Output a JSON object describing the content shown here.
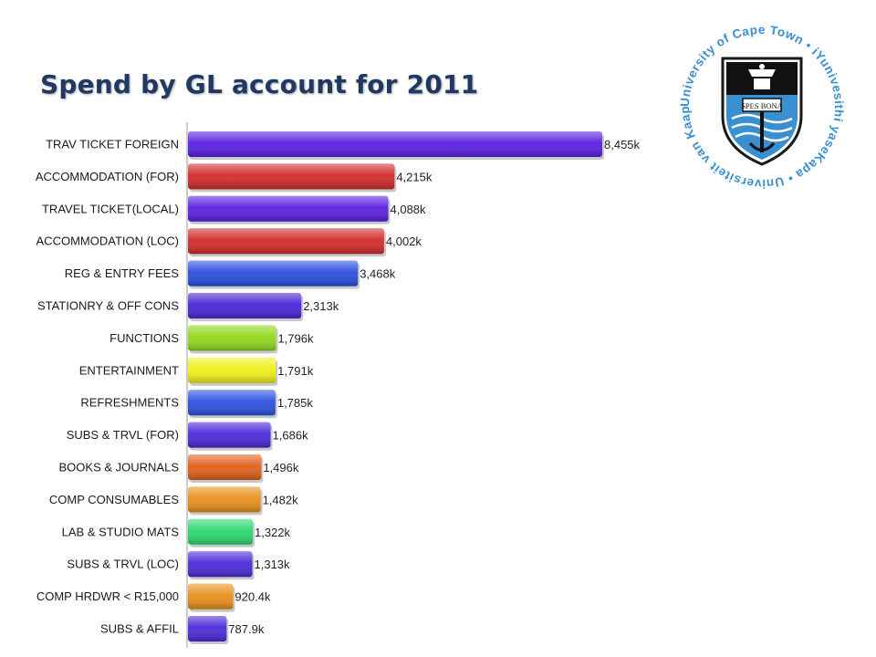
{
  "page": {
    "title": "Spend by GL account for 2011"
  },
  "logo": {
    "ring_text": "University of Cape Town • iYunivesithi yaseKapa • Universiteit van Kaapstad •",
    "motto": "SPES BONA",
    "color": "#3a8fd0"
  },
  "chart_data": {
    "type": "bar",
    "orientation": "horizontal",
    "title": "Spend by GL account for 2011",
    "xlabel": "",
    "ylabel": "",
    "xlim": [
      0,
      8455
    ],
    "categories": [
      "TRAV TICKET FOREIGN",
      "ACCOMMODATION (FOR)",
      "TRAVEL TICKET(LOCAL)",
      "ACCOMMODATION  (LOC)",
      "REG & ENTRY FEES",
      "STATIONRY & OFF CONS",
      "FUNCTIONS",
      "ENTERTAINMENT",
      "REFRESHMENTS",
      "SUBS & TRVL (FOR)",
      "BOOKS & JOURNALS",
      "COMP CONSUMABLES",
      "LAB & STUDIO MATS",
      "SUBS & TRVL (LOC)",
      "COMP HRDWR < R15,000",
      "SUBS & AFFIL"
    ],
    "values": [
      8455,
      4215,
      4088,
      4002,
      3468,
      2313,
      1796,
      1791,
      1785,
      1686,
      1496,
      1482,
      1322,
      1313,
      920.4,
      787.9
    ],
    "value_labels": [
      "8,455k",
      "4,215k",
      "4,088k",
      "4,002k",
      "3,468k",
      "2,313k",
      "1,796k",
      "1,791k",
      "1,785k",
      "1,686k",
      "1,496k",
      "1,482k",
      "1,322k",
      "1,313k",
      "920.4k",
      "787.9k"
    ],
    "colors": [
      "#5a1fe0",
      "#d42a2a",
      "#5a1fe0",
      "#d42a2a",
      "#2a4ee0",
      "#4a24d8",
      "#8fd81a",
      "#f0f01a",
      "#2a52e0",
      "#4a28d8",
      "#e0601a",
      "#e8901a",
      "#2ad870",
      "#4a2ad8",
      "#e8901a",
      "#4a2ad8"
    ],
    "grid": false,
    "legend": "none"
  }
}
